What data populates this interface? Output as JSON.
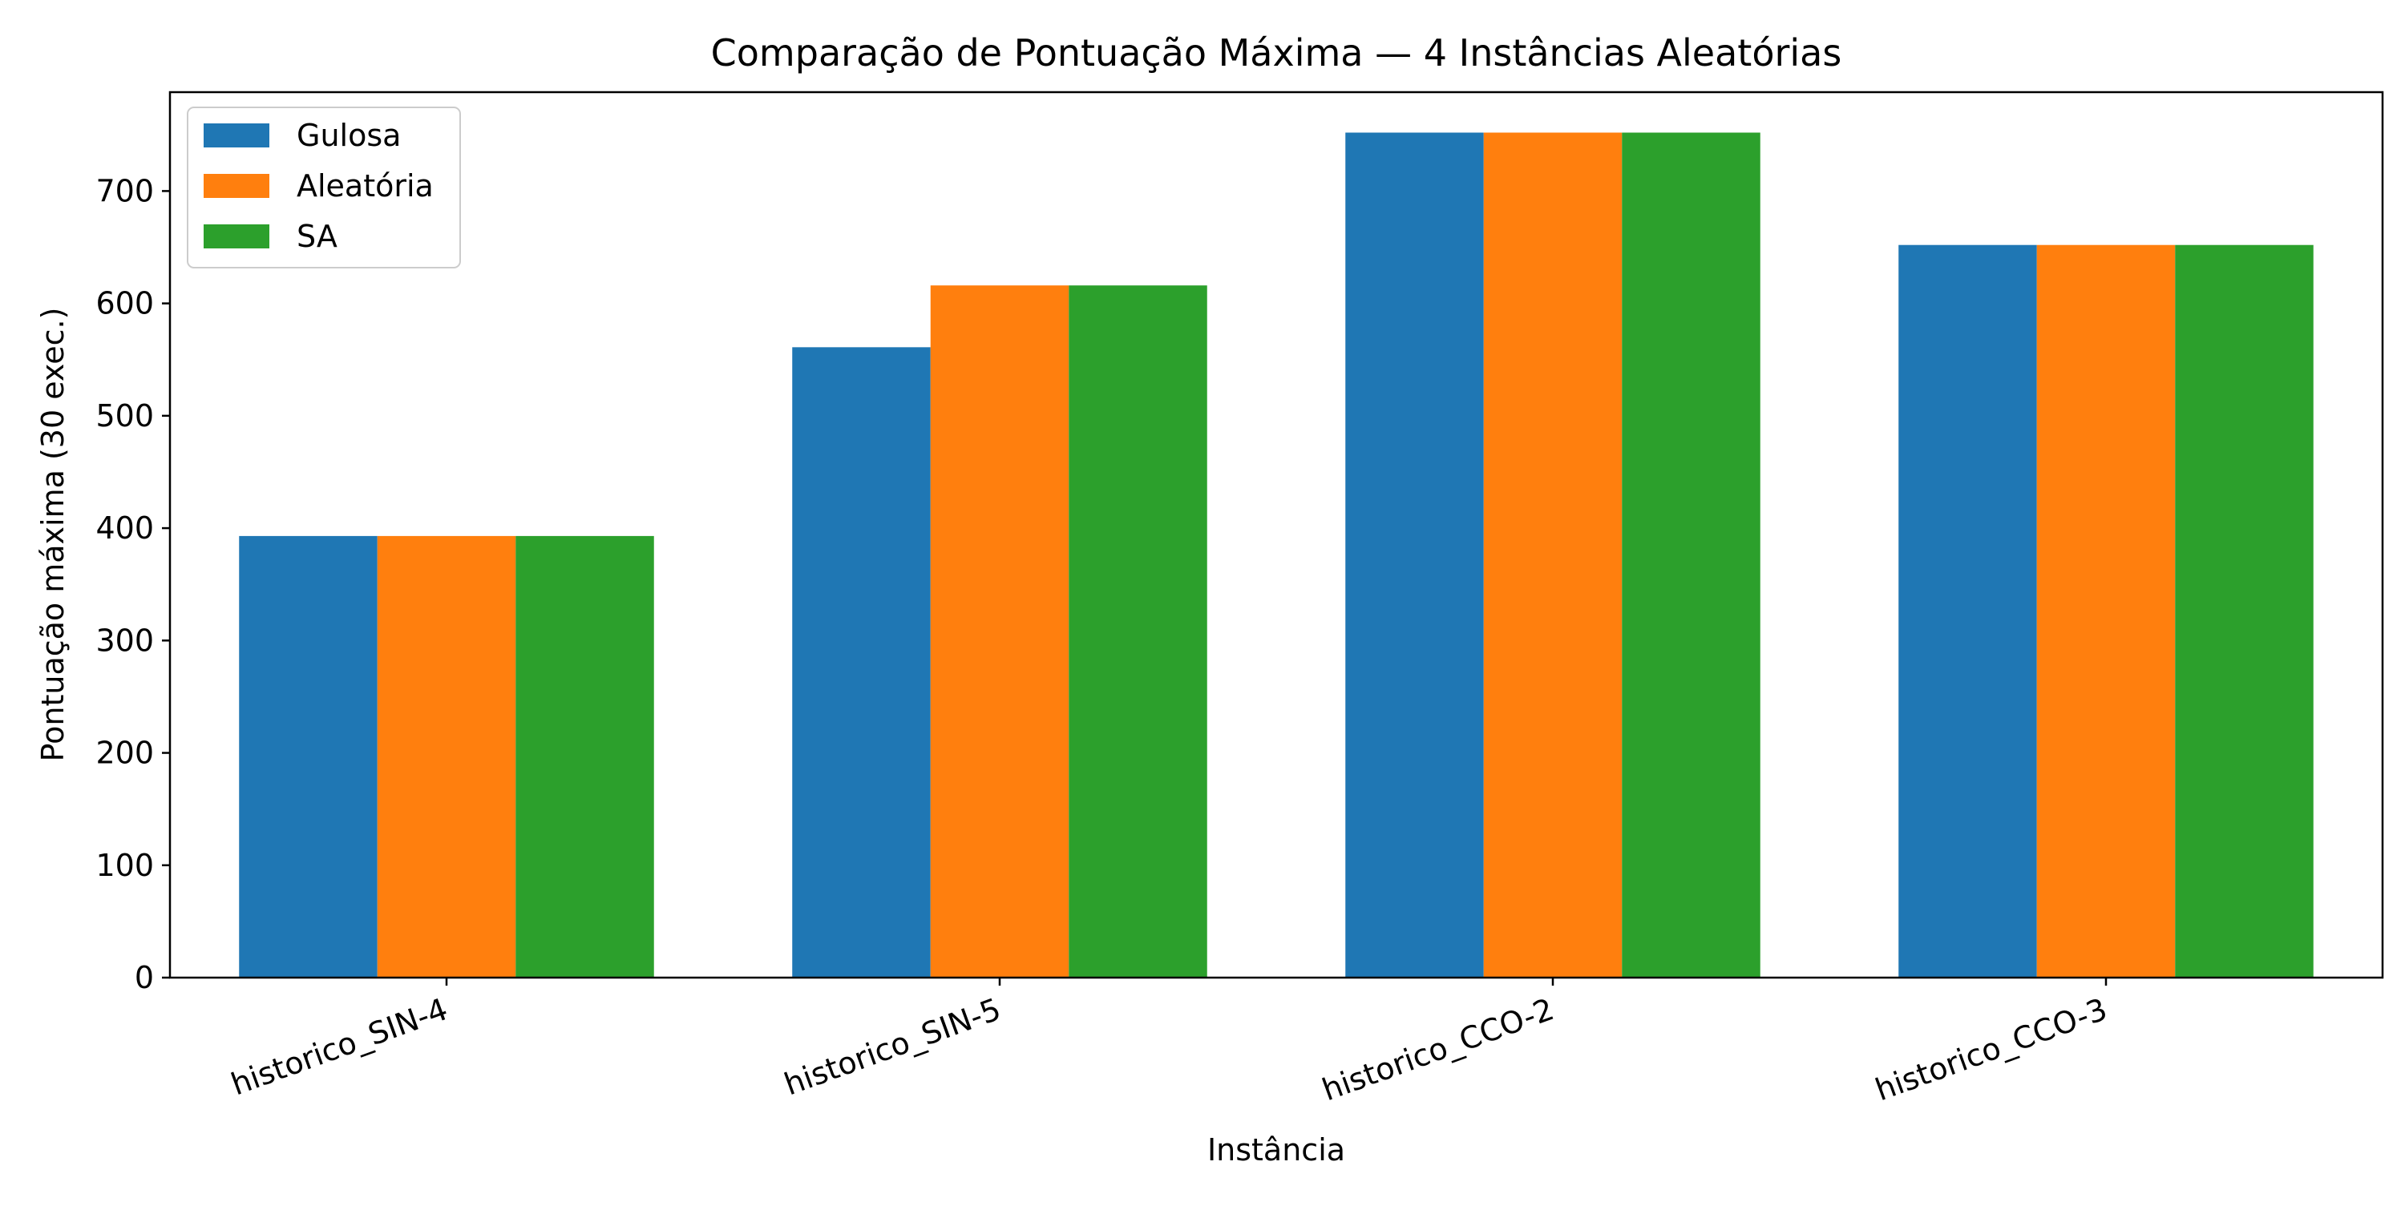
{
  "chart_data": {
    "type": "bar",
    "title": "Comparação de Pontuação Máxima — 4 Instâncias Aleatórias",
    "xlabel": "Instância",
    "ylabel": "Pontuação máxima (30 exec.)",
    "categories": [
      "historico_SIN-4",
      "historico_SIN-5",
      "historico_CCO-2",
      "historico_CCO-3"
    ],
    "series": [
      {
        "name": "Gulosa",
        "color": "#1f77b4",
        "values": [
          393,
          561,
          752,
          652
        ]
      },
      {
        "name": "Aleatória",
        "color": "#ff7f0e",
        "values": [
          393,
          616,
          752,
          652
        ]
      },
      {
        "name": "SA",
        "color": "#2ca02c",
        "values": [
          393,
          616,
          752,
          652
        ]
      }
    ],
    "ylim": [
      0,
      788
    ],
    "yticks": [
      0,
      100,
      200,
      300,
      400,
      500,
      600,
      700
    ],
    "grid": false,
    "legend_position": "top-left"
  }
}
